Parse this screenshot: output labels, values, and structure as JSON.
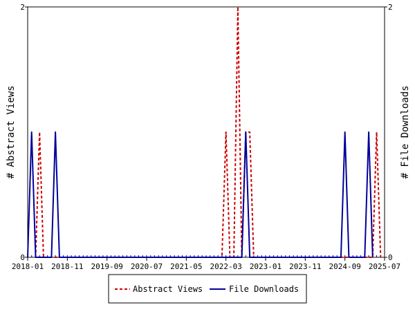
{
  "chart_data": {
    "type": "line",
    "title": "",
    "ylabel_left": "# Abstract Views",
    "ylabel_right": "# File Downloads",
    "ylim_left": [
      0,
      2
    ],
    "ylim_right": [
      0,
      2
    ],
    "y_ticks_left": [
      "0",
      "2"
    ],
    "y_ticks_right": [
      "0",
      "2"
    ],
    "x_range": [
      "2018-01",
      "2025-07"
    ],
    "x_tick_labels": [
      "2018-01",
      "2018-11",
      "2019-09",
      "2020-07",
      "2021-05",
      "2022-03",
      "2023-01",
      "2023-11",
      "2024-09",
      "2025-07"
    ],
    "grid": false,
    "legend_position": "bottom",
    "series": [
      {
        "name": "Abstract Views",
        "axis": "left",
        "color": "#cc0000",
        "line_style": "dashed",
        "points": [
          [
            "2018-03",
            0
          ],
          [
            "2018-04",
            1
          ],
          [
            "2018-05",
            0
          ],
          [
            "2022-02",
            0
          ],
          [
            "2022-03",
            1
          ],
          [
            "2022-04",
            0
          ],
          [
            "2022-05",
            0
          ],
          [
            "2022-06",
            2
          ],
          [
            "2022-07",
            0
          ],
          [
            "2022-08",
            1
          ],
          [
            "2022-09",
            1
          ],
          [
            "2022-10",
            0
          ],
          [
            "2025-04",
            0
          ],
          [
            "2025-05",
            1
          ],
          [
            "2025-06",
            0
          ]
        ]
      },
      {
        "name": "File Downloads",
        "axis": "right",
        "color": "#000099",
        "line_style": "solid",
        "points": [
          [
            "2018-01",
            0
          ],
          [
            "2018-02",
            1
          ],
          [
            "2018-03",
            0
          ],
          [
            "2018-07",
            0
          ],
          [
            "2018-08",
            1
          ],
          [
            "2018-09",
            0
          ],
          [
            "2018-10",
            0
          ],
          [
            "2022-07",
            0
          ],
          [
            "2022-08",
            1
          ],
          [
            "2022-09",
            0
          ],
          [
            "2024-08",
            0
          ],
          [
            "2024-09",
            1
          ],
          [
            "2024-10",
            0
          ],
          [
            "2025-02",
            0
          ],
          [
            "2025-03",
            1
          ],
          [
            "2025-04",
            0
          ]
        ]
      }
    ]
  }
}
